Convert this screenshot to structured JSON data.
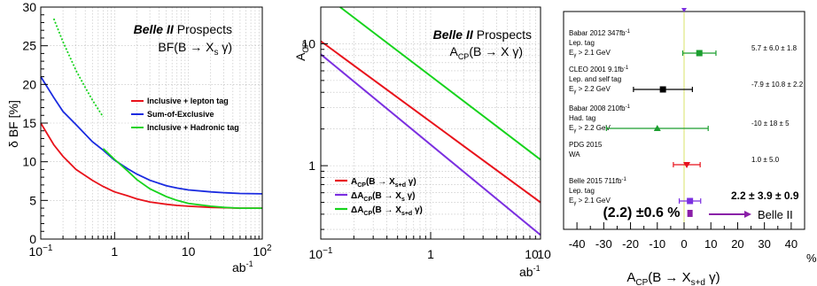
{
  "chart_data": [
    {
      "type": "line",
      "title_bold": "Belle II",
      "title_rest": "Prospects",
      "subtitle": "BF(B → X",
      "subtitle_sub": "s",
      "subtitle_tail": " γ)",
      "ylabel": "δ BF [%]",
      "xlabel": "ab",
      "xlabel_sup": "-1",
      "x_scale": "log",
      "xlim": [
        0.1,
        100
      ],
      "ylim": [
        0,
        30
      ],
      "grid": true,
      "legend_position": "center-right",
      "yticks": [
        "0",
        "5",
        "10",
        "15",
        "20",
        "25",
        "30"
      ],
      "xticks": [
        {
          "base": "10",
          "exp": "−1"
        },
        {
          "base": "1",
          "exp": ""
        },
        {
          "base": "10",
          "exp": ""
        },
        {
          "base": "10",
          "exp": "2"
        }
      ],
      "series": [
        {
          "name": "Inclusive + lepton tag",
          "color": "#e8121b",
          "dash": "solid",
          "x": [
            0.1,
            0.15,
            0.2,
            0.3,
            0.5,
            0.7,
            1,
            1.5,
            2,
            3,
            5,
            7,
            10,
            20,
            30,
            50,
            100
          ],
          "y": [
            15,
            12.2,
            10.7,
            9.0,
            7.6,
            6.8,
            6.1,
            5.6,
            5.2,
            4.8,
            4.5,
            4.35,
            4.25,
            4.1,
            4.05,
            4.0,
            4.0
          ]
        },
        {
          "name": "Sum-of-Exclusive",
          "color": "#1a2be0",
          "dash": "solid",
          "x": [
            0.1,
            0.15,
            0.2,
            0.3,
            0.5,
            0.7,
            1,
            1.5,
            2,
            3,
            5,
            7,
            10,
            20,
            30,
            50,
            100
          ],
          "y": [
            21,
            18.3,
            16.5,
            14.8,
            12.6,
            11.5,
            10.2,
            9.1,
            8.4,
            7.6,
            6.9,
            6.6,
            6.35,
            6.1,
            6.0,
            5.9,
            5.85
          ]
        },
        {
          "name": "Inclusive + Hadronic tag",
          "color": "#17d31d",
          "dash": "solid",
          "x": [
            0.7,
            1,
            1.5,
            2,
            3,
            5,
            7,
            10,
            20,
            30,
            50,
            100
          ],
          "y": [
            11.7,
            10.3,
            8.8,
            7.7,
            6.5,
            5.5,
            5.0,
            4.6,
            4.25,
            4.1,
            4.0,
            4.0
          ]
        },
        {
          "name": "",
          "color": "#17d31d",
          "dash": "dotted",
          "x": [
            0.15,
            0.2,
            0.3,
            0.4,
            0.5,
            0.6,
            0.7
          ],
          "y": [
            28.5,
            25.5,
            21.8,
            19.6,
            18.0,
            16.8,
            15.8
          ]
        }
      ]
    },
    {
      "type": "line",
      "title_bold": "Belle II",
      "title_rest": "Prospects",
      "subtitle": "A",
      "subtitle_sub": "CP",
      "subtitle_tail": "(B → X γ)",
      "ylabel": "A",
      "ylabel_sub": "CP",
      "xlabel": "ab",
      "xlabel_sup": "-1",
      "x_scale": "log",
      "y_scale": "log",
      "xlim": [
        0.1,
        10
      ],
      "ylim": [
        0.25,
        20
      ],
      "grid": true,
      "legend_position": "bottom-left",
      "yticks": [
        "1",
        "10"
      ],
      "xticks": [
        "10⁻¹",
        "1",
        "10",
        "10"
      ],
      "series": [
        {
          "name_main": "A",
          "name_sub": "CP",
          "name_tail": "(B → X",
          "name_sub2": "s+d",
          "name_end": " γ)",
          "color": "#e8121b",
          "x": [
            0.1,
            10
          ],
          "y": [
            10.5,
            0.5
          ]
        },
        {
          "name_main": "ΔA",
          "name_sub": "CP",
          "name_tail": "(B → X",
          "name_sub2": "s",
          "name_end": " γ)",
          "color": "#7b2fe0",
          "x": [
            0.1,
            10
          ],
          "y": [
            8.2,
            0.27
          ]
        },
        {
          "name_main": "ΔA",
          "name_sub": "CP",
          "name_tail": "(B → X",
          "name_sub2": "s+d",
          "name_end": " γ)",
          "color": "#17d31d",
          "x": [
            0.15,
            10
          ],
          "y": [
            20,
            1.12
          ]
        }
      ]
    },
    {
      "type": "scatter",
      "xlabel": "A",
      "xlabel_sub": "CP",
      "xlabel_tail": "(B → X",
      "xlabel_sub2": "s+d",
      "xlabel_end": " γ)",
      "x_unit": "%",
      "xlim": [
        -45,
        45
      ],
      "xticks": [
        "-40",
        "-30",
        "-20",
        "-10",
        "0",
        "10",
        "20",
        "30",
        "40"
      ],
      "points": [
        {
          "label": "Babar 2012 347fb",
          "label_sup": "-1",
          "line2": "Lep. tag",
          "line3": "E",
          "line3_sub": "γ",
          "line3_tail": " > 2.1 GeV",
          "value": 5.7,
          "err": 6.2,
          "value_text": "5.7 ± 6.0 ± 1.8",
          "color": "#1b9e2f",
          "marker": "square"
        },
        {
          "label": "CLEO 2001 9.1fb",
          "label_sup": "-1",
          "line2": "Lep. and self tag",
          "line3": "E",
          "line3_sub": "γ",
          "line3_tail": " > 2.2 GeV",
          "value": -7.9,
          "err": 11.0,
          "value_text": "-7.9 ± 10.8 ± 2.2",
          "color": "#000000",
          "marker": "square"
        },
        {
          "label": "Babar 2008 210fb",
          "label_sup": "-1",
          "line2": "Had. tag",
          "line3": "E",
          "line3_sub": "γ",
          "line3_tail": " > 2.2 GeV",
          "value": -10,
          "err": 19,
          "value_text": "-10 ± 18 ± 5",
          "color": "#1b9e2f",
          "marker": "triangle-up"
        },
        {
          "label": "PDG 2015",
          "label_sup": "",
          "line2": "WA",
          "line3": "",
          "line3_sub": "",
          "line3_tail": "",
          "value": 1.0,
          "err": 5.0,
          "value_text": "1.0 ± 5.0",
          "color": "#e8121b",
          "marker": "triangle-down"
        },
        {
          "label": "Belle 2015 711fb",
          "label_sup": "-1",
          "line2": "Lep. tag",
          "line3": "E",
          "line3_sub": "γ",
          "line3_tail": " > 2.1 GeV",
          "value": 2.2,
          "err": 4.0,
          "value_text": "2.2 ± 3.9 ± 0.9",
          "color": "#7b2fe0",
          "marker": "square"
        }
      ],
      "projection": {
        "text": "(2.2) ±0.6 %",
        "target": "Belle II",
        "value": 2.2,
        "err": 0.6,
        "color": "#8a1fa8"
      }
    }
  ]
}
